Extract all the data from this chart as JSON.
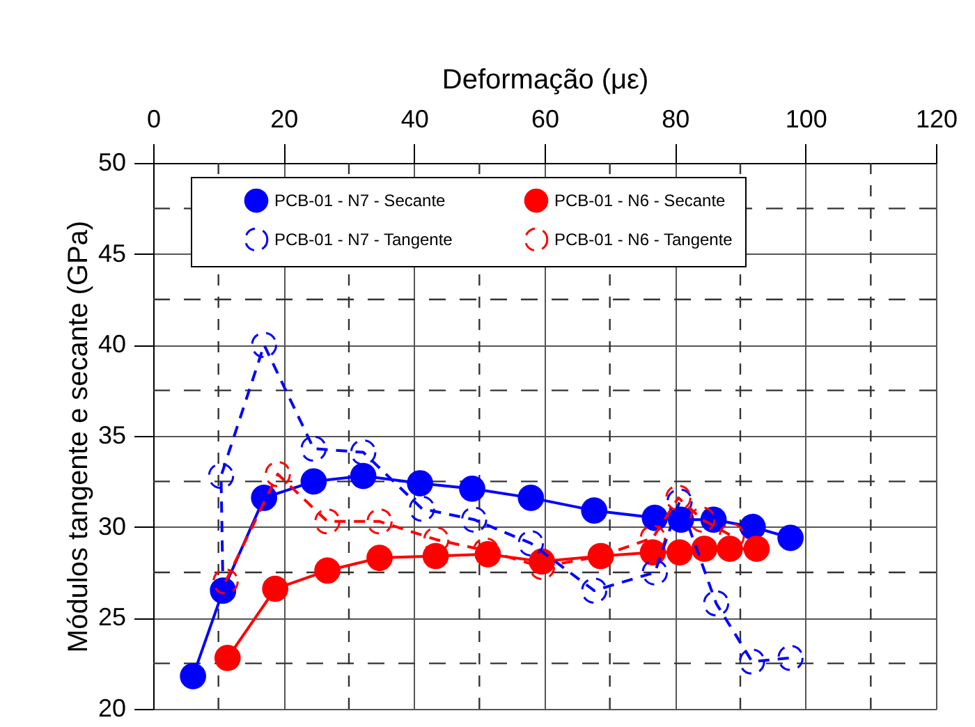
{
  "chart_data": {
    "type": "line",
    "xlabel": "Deformação (με)",
    "ylabel": "Módulos tangente e secante (GPa)",
    "xlim": [
      0,
      120
    ],
    "xticks": [
      0,
      20,
      40,
      60,
      80,
      100,
      120
    ],
    "ylim": [
      20,
      50
    ],
    "yticks": [
      20,
      25,
      30,
      35,
      40,
      45,
      50
    ],
    "grid": true,
    "legend": "top",
    "marker": "circle",
    "series": [
      {
        "name": "PCB-01 - N7 - Secante",
        "color": "#0000ff",
        "line_style": "solid",
        "x": [
          6.1,
          10.7,
          17,
          24.6,
          32.2,
          40.9,
          48.9,
          57.9,
          67.6,
          76.9,
          80.9,
          85.9,
          91.9,
          97.7
        ],
        "values": [
          21.8,
          26.5,
          31.6,
          32.5,
          32.8,
          32.4,
          32.1,
          31.6,
          30.9,
          30.5,
          30.4,
          30.4,
          30.0,
          29.4
        ]
      },
      {
        "name": "PCB-01 - N7 - Tangente",
        "color": "#0000ff",
        "line_style": "dashed",
        "x": [
          10.7,
          10.4,
          17,
          24.6,
          32.2,
          41.2,
          49.2,
          57.9,
          67.6,
          76.9,
          80.7,
          86.3,
          91.8,
          97.7
        ],
        "values": [
          26.5,
          32.8,
          40.0,
          34.3,
          34.1,
          31.0,
          30.4,
          29.1,
          26.5,
          27.5,
          31.4,
          25.8,
          22.6,
          22.8
        ]
      },
      {
        "name": "PCB-01 - N6 - Secante",
        "color": "#ff0000",
        "line_style": "solid",
        "x": [
          11.4,
          18.7,
          26.7,
          34.7,
          43.3,
          51.3,
          59.6,
          68.6,
          76.6,
          80.7,
          84.5,
          88.4,
          92.5
        ],
        "values": [
          22.8,
          26.6,
          27.6,
          28.3,
          28.4,
          28.5,
          28.1,
          28.4,
          28.6,
          28.6,
          28.8,
          28.8,
          28.8
        ]
      },
      {
        "name": "PCB-01 - N6 - Tangente",
        "color": "#ff0000",
        "line_style": "dashed",
        "x": [
          11.1,
          19.1,
          26.7,
          34.7,
          43.4,
          51,
          59.6,
          68.6,
          76.6,
          80.5,
          84.2,
          88.7
        ],
        "values": [
          27.0,
          32.9,
          30.3,
          30.3,
          29.3,
          28.7,
          27.8,
          28.4,
          29.4,
          31.6,
          30.4,
          29.5
        ]
      }
    ]
  }
}
